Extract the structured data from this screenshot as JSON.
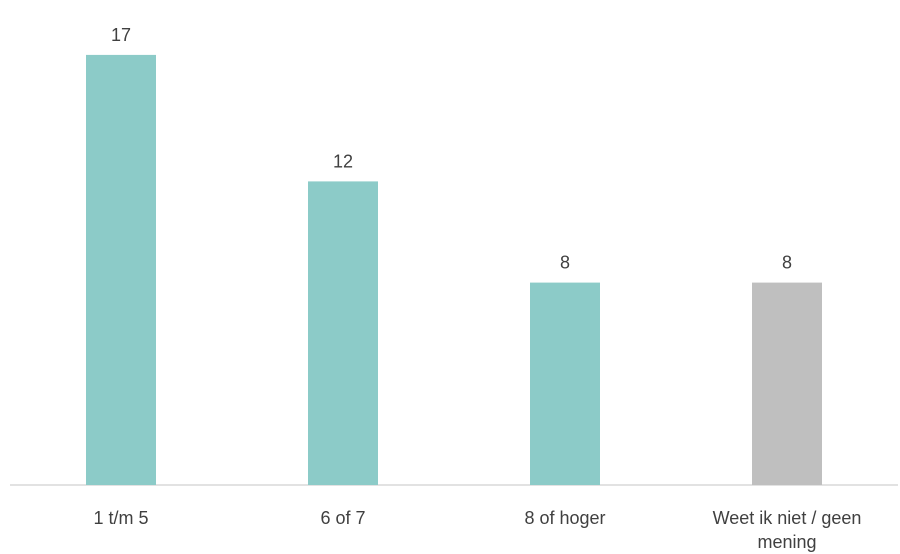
{
  "chart_data": {
    "type": "bar",
    "categories": [
      "1 t/m 5",
      "6 of 7",
      "8 of hoger",
      "Weet ik niet / geen mening"
    ],
    "values": [
      17,
      12,
      8,
      8
    ],
    "data_labels": [
      "17",
      "12",
      "8",
      "8"
    ],
    "colors": [
      "#8ccbc8",
      "#8ccbc8",
      "#8ccbc8",
      "#bfbfbf"
    ],
    "axis_color": "#d9d9d9",
    "grid": false,
    "legend": "none"
  }
}
